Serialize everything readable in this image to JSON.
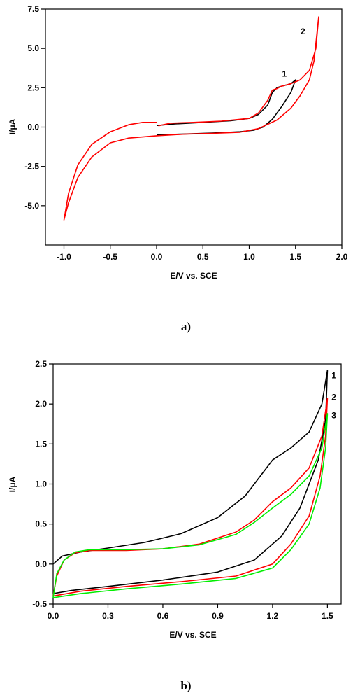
{
  "chart_data": [
    {
      "type": "line",
      "panel_label": "a)",
      "xlabel": "E/V vs. SCE",
      "ylabel": "I/μA",
      "xlim": [
        -1.2,
        2.0
      ],
      "ylim": [
        -7.5,
        7.5
      ],
      "xticks": [
        "-1.0",
        "-0.5",
        "0.0",
        "0.5",
        "1.0",
        "1.5",
        "2.0"
      ],
      "xtick_values": [
        -1.0,
        -0.5,
        0.0,
        0.5,
        1.0,
        1.5,
        2.0
      ],
      "yticks": [
        "7.5",
        "5.0",
        "2.5",
        "0.0",
        "-2.5",
        "-5.0"
      ],
      "ytick_values": [
        7.5,
        5.0,
        2.5,
        0.0,
        -2.5,
        -5.0
      ],
      "series": [
        {
          "name": "1",
          "color": "#000000",
          "points": [
            [
              0.0,
              -0.5
            ],
            [
              0.3,
              -0.44
            ],
            [
              0.6,
              -0.38
            ],
            [
              0.9,
              -0.3
            ],
            [
              1.05,
              -0.2
            ],
            [
              1.15,
              0.0
            ],
            [
              1.25,
              0.5
            ],
            [
              1.35,
              1.3
            ],
            [
              1.45,
              2.2
            ],
            [
              1.5,
              3.0
            ],
            [
              1.45,
              2.75
            ],
            [
              1.35,
              2.6
            ],
            [
              1.3,
              2.5
            ],
            [
              1.25,
              2.2
            ],
            [
              1.2,
              1.4
            ],
            [
              1.1,
              0.8
            ],
            [
              1.0,
              0.55
            ],
            [
              0.8,
              0.4
            ],
            [
              0.5,
              0.3
            ],
            [
              0.2,
              0.2
            ],
            [
              0.0,
              0.1
            ]
          ]
        },
        {
          "name": "2",
          "color": "#ff0000",
          "points": [
            [
              0.0,
              0.3
            ],
            [
              -0.15,
              0.3
            ],
            [
              -0.3,
              0.15
            ],
            [
              -0.5,
              -0.3
            ],
            [
              -0.7,
              -1.1
            ],
            [
              -0.85,
              -2.4
            ],
            [
              -0.95,
              -4.2
            ],
            [
              -1.0,
              -5.9
            ],
            [
              -0.95,
              -4.8
            ],
            [
              -0.85,
              -3.2
            ],
            [
              -0.7,
              -1.9
            ],
            [
              -0.5,
              -1.0
            ],
            [
              -0.3,
              -0.7
            ],
            [
              0.0,
              -0.55
            ],
            [
              0.3,
              -0.45
            ],
            [
              0.6,
              -0.4
            ],
            [
              0.9,
              -0.33
            ],
            [
              1.1,
              -0.1
            ],
            [
              1.3,
              0.45
            ],
            [
              1.45,
              1.2
            ],
            [
              1.55,
              2.0
            ],
            [
              1.65,
              3.0
            ],
            [
              1.7,
              4.2
            ],
            [
              1.75,
              7.0
            ],
            [
              1.72,
              5.0
            ],
            [
              1.65,
              3.6
            ],
            [
              1.55,
              3.0
            ],
            [
              1.45,
              2.75
            ],
            [
              1.35,
              2.6
            ],
            [
              1.3,
              2.45
            ],
            [
              1.25,
              2.35
            ],
            [
              1.2,
              1.7
            ],
            [
              1.1,
              0.9
            ],
            [
              1.0,
              0.55
            ],
            [
              0.7,
              0.38
            ],
            [
              0.4,
              0.3
            ],
            [
              0.15,
              0.25
            ],
            [
              0.02,
              0.08
            ]
          ]
        }
      ],
      "annotations": [
        {
          "text": "1",
          "x": 1.38,
          "y": 3.2
        },
        {
          "text": "2",
          "x": 1.58,
          "y": 5.9
        }
      ]
    },
    {
      "type": "line",
      "panel_label": "b)",
      "xlabel": "E/V vs. SCE",
      "ylabel": "I/μA",
      "xlim": [
        0.0,
        1.575
      ],
      "ylim": [
        -0.5,
        2.5
      ],
      "xticks": [
        "0.0",
        "0.3",
        "0.6",
        "0.9",
        "1.2",
        "1.5"
      ],
      "xtick_values": [
        0.0,
        0.3,
        0.6,
        0.9,
        1.2,
        1.5
      ],
      "yticks": [
        "2.5",
        "2.0",
        "1.5",
        "1.0",
        "0.5",
        "0.0",
        "-0.5"
      ],
      "ytick_values": [
        2.5,
        2.0,
        1.5,
        1.0,
        0.5,
        0.0,
        -0.5
      ],
      "series": [
        {
          "name": "1",
          "color": "#000000",
          "points": [
            [
              0.0,
              0.0
            ],
            [
              0.05,
              0.1
            ],
            [
              0.15,
              0.15
            ],
            [
              0.3,
              0.2
            ],
            [
              0.5,
              0.27
            ],
            [
              0.7,
              0.38
            ],
            [
              0.9,
              0.58
            ],
            [
              1.05,
              0.85
            ],
            [
              1.15,
              1.15
            ],
            [
              1.2,
              1.3
            ],
            [
              1.3,
              1.45
            ],
            [
              1.4,
              1.65
            ],
            [
              1.47,
              2.0
            ],
            [
              1.5,
              2.42
            ],
            [
              1.49,
              1.8
            ],
            [
              1.45,
              1.3
            ],
            [
              1.35,
              0.7
            ],
            [
              1.25,
              0.35
            ],
            [
              1.1,
              0.05
            ],
            [
              0.9,
              -0.1
            ],
            [
              0.6,
              -0.2
            ],
            [
              0.3,
              -0.28
            ],
            [
              0.1,
              -0.33
            ],
            [
              0.0,
              -0.37
            ]
          ]
        },
        {
          "name": "2",
          "color": "#ff0000",
          "points": [
            [
              0.0,
              -0.4
            ],
            [
              0.02,
              -0.15
            ],
            [
              0.06,
              0.05
            ],
            [
              0.12,
              0.14
            ],
            [
              0.2,
              0.17
            ],
            [
              0.4,
              0.17
            ],
            [
              0.6,
              0.19
            ],
            [
              0.8,
              0.25
            ],
            [
              1.0,
              0.4
            ],
            [
              1.1,
              0.55
            ],
            [
              1.2,
              0.78
            ],
            [
              1.3,
              0.95
            ],
            [
              1.4,
              1.2
            ],
            [
              1.47,
              1.6
            ],
            [
              1.5,
              2.07
            ],
            [
              1.49,
              1.6
            ],
            [
              1.46,
              1.1
            ],
            [
              1.4,
              0.6
            ],
            [
              1.3,
              0.25
            ],
            [
              1.2,
              0.0
            ],
            [
              1.0,
              -0.15
            ],
            [
              0.7,
              -0.22
            ],
            [
              0.4,
              -0.28
            ],
            [
              0.15,
              -0.34
            ],
            [
              0.0,
              -0.4
            ]
          ]
        },
        {
          "name": "3",
          "color": "#00ee00",
          "points": [
            [
              0.0,
              -0.42
            ],
            [
              0.02,
              -0.12
            ],
            [
              0.06,
              0.05
            ],
            [
              0.12,
              0.15
            ],
            [
              0.2,
              0.18
            ],
            [
              0.4,
              0.18
            ],
            [
              0.6,
              0.19
            ],
            [
              0.8,
              0.24
            ],
            [
              1.0,
              0.37
            ],
            [
              1.1,
              0.52
            ],
            [
              1.2,
              0.7
            ],
            [
              1.3,
              0.87
            ],
            [
              1.4,
              1.1
            ],
            [
              1.47,
              1.45
            ],
            [
              1.5,
              1.88
            ],
            [
              1.49,
              1.45
            ],
            [
              1.46,
              0.95
            ],
            [
              1.4,
              0.5
            ],
            [
              1.3,
              0.18
            ],
            [
              1.2,
              -0.05
            ],
            [
              1.0,
              -0.18
            ],
            [
              0.7,
              -0.25
            ],
            [
              0.4,
              -0.31
            ],
            [
              0.15,
              -0.37
            ],
            [
              0.0,
              -0.42
            ]
          ]
        }
      ],
      "annotations": [
        {
          "text": "1",
          "x": 1.535,
          "y": 2.32
        },
        {
          "text": "2",
          "x": 1.535,
          "y": 2.05
        },
        {
          "text": "3",
          "x": 1.535,
          "y": 1.82
        }
      ]
    }
  ]
}
